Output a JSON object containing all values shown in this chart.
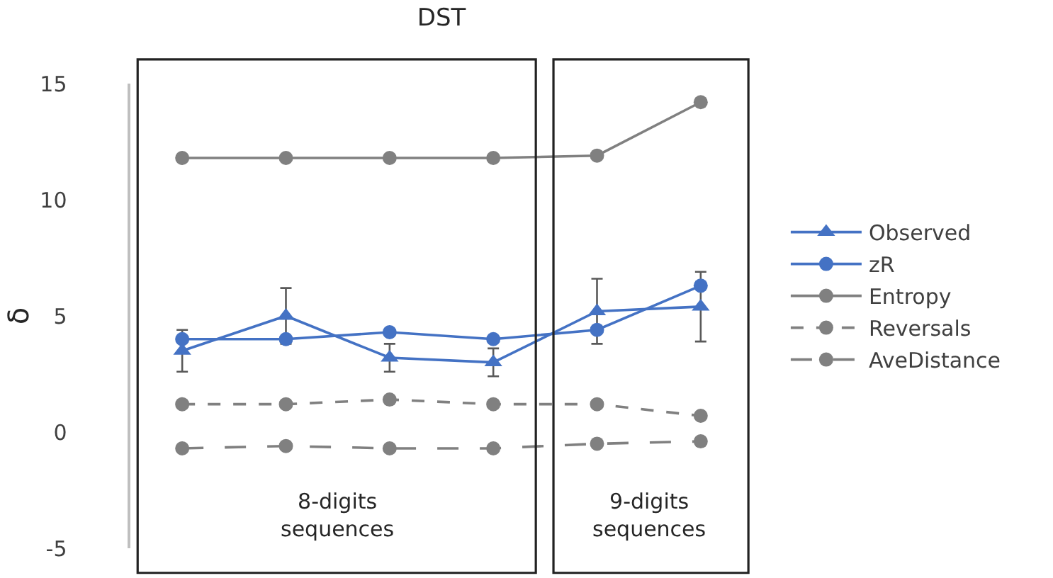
{
  "chart_data": {
    "type": "line",
    "title": "DST",
    "ylabel": "δ",
    "categories": [
      null,
      null,
      null,
      null,
      null,
      null
    ],
    "series": [
      {
        "name": "Observed",
        "color": "#4472c4",
        "marker": "triangle",
        "line_style": "solid",
        "values": [
          3.5,
          5.0,
          3.2,
          3.0,
          5.2,
          5.4
        ],
        "errors": [
          0.9,
          1.2,
          0.6,
          0.6,
          1.4,
          1.5
        ]
      },
      {
        "name": "zR",
        "color": "#4472c4",
        "marker": "circle",
        "line_style": "solid",
        "values": [
          4.0,
          4.0,
          4.3,
          4.0,
          4.4,
          6.3
        ]
      },
      {
        "name": "Entropy",
        "color": "#808080",
        "marker": "circle",
        "line_style": "solid",
        "values": [
          11.8,
          11.8,
          11.8,
          11.8,
          11.9,
          14.2
        ]
      },
      {
        "name": "Reversals",
        "color": "#808080",
        "marker": "circle",
        "line_style": "dotted",
        "values": [
          1.2,
          1.2,
          1.4,
          1.2,
          1.2,
          0.7
        ]
      },
      {
        "name": "AveDistance",
        "color": "#808080",
        "marker": "circle",
        "line_style": "dashed",
        "values": [
          -0.7,
          -0.6,
          -0.7,
          -0.7,
          -0.5,
          -0.4
        ]
      }
    ],
    "annotations": [
      "8-digits sequences",
      "9-digits sequences"
    ],
    "ylim": [
      -5,
      15
    ],
    "yticks": [
      -5,
      0,
      5,
      10,
      15
    ],
    "legend": "right"
  }
}
